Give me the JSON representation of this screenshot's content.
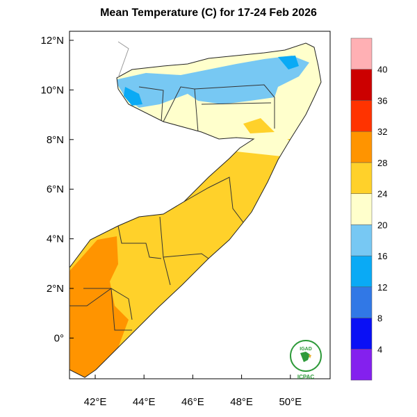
{
  "title": "Mean Temperature (C) for 17-24 Feb 2026",
  "map": {
    "y_ticks": [
      "12°N",
      "10°N",
      "8°N",
      "6°N",
      "4°N",
      "2°N",
      "0°"
    ],
    "x_ticks": [
      "42°E",
      "44°E",
      "46°E",
      "48°E",
      "50°E"
    ],
    "lon_range": [
      41,
      51.6
    ],
    "lat_range": [
      -1.7,
      12.4
    ]
  },
  "colorbar": {
    "labels": [
      "4",
      "8",
      "12",
      "16",
      "20",
      "24",
      "28",
      "32",
      "36",
      "40"
    ],
    "colors": [
      "#8420ee",
      "#0a10f5",
      "#3178e6",
      "#0aaaf5",
      "#77c8f3",
      "#ffffcc",
      "#ffd12a",
      "#ff9400",
      "#ff3300",
      "#cc0000",
      "#ffb0b4"
    ]
  },
  "logo": {
    "top_text": "IGAD",
    "bottom_text": "ICPAC"
  }
}
